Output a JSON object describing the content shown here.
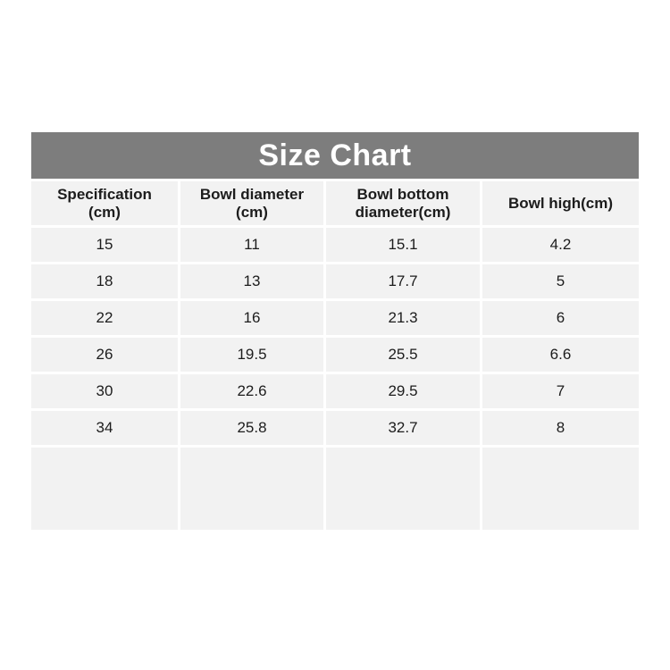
{
  "colors": {
    "page_bg": "#ffffff",
    "title_bg": "#7d7d7d",
    "title_color": "#ffffff",
    "cell_bg": "#f2f2f2",
    "text_color": "#1c1c1c"
  },
  "table": {
    "title": "Size Chart",
    "columns": [
      {
        "label": "Specification\n(cm)"
      },
      {
        "label": "Bowl diameter\n(cm)"
      },
      {
        "label": "Bowl bottom\ndiameter(cm)"
      },
      {
        "label": "Bowl high(cm)"
      }
    ],
    "rows": [
      [
        "15",
        "11",
        "15.1",
        "4.2"
      ],
      [
        "18",
        "13",
        "17.7",
        "5"
      ],
      [
        "22",
        "16",
        "21.3",
        "6"
      ],
      [
        "26",
        "19.5",
        "25.5",
        "6.6"
      ],
      [
        "30",
        "22.6",
        "29.5",
        "7"
      ],
      [
        "34",
        "25.8",
        "32.7",
        "8"
      ]
    ],
    "empty_row_cells": 4
  },
  "chart_data": {
    "type": "table",
    "title": "Size Chart",
    "columns": [
      "Specification (cm)",
      "Bowl diameter (cm)",
      "Bowl bottom diameter(cm)",
      "Bowl high(cm)"
    ],
    "rows": [
      [
        15,
        11,
        15.1,
        4.2
      ],
      [
        18,
        13,
        17.7,
        5
      ],
      [
        22,
        16,
        21.3,
        6
      ],
      [
        26,
        19.5,
        25.5,
        6.6
      ],
      [
        30,
        22.6,
        29.5,
        7
      ],
      [
        34,
        25.8,
        32.7,
        8
      ]
    ]
  }
}
